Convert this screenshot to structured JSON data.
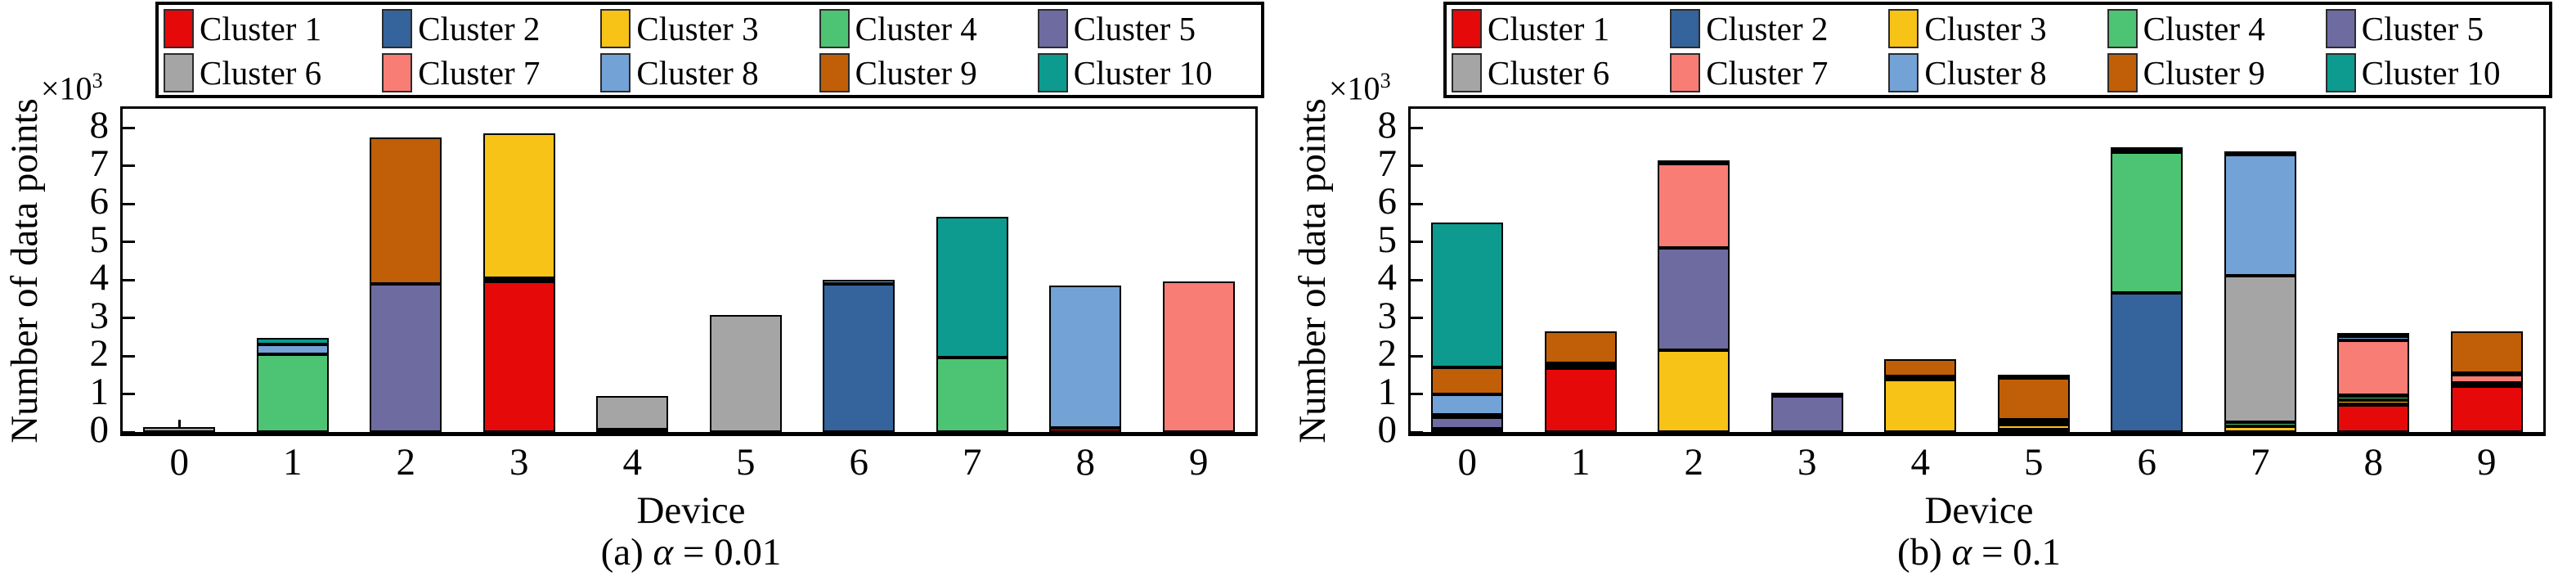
{
  "figure": {
    "ylabel": "Number of data points",
    "xlabel": "Device",
    "y_multiplier_base": "×10",
    "y_multiplier_exp": "3",
    "legend_labels": [
      "Cluster 1",
      "Cluster 2",
      "Cluster 3",
      "Cluster 4",
      "Cluster 5",
      "Cluster 6",
      "Cluster 7",
      "Cluster 8",
      "Cluster 9",
      "Cluster 10"
    ],
    "colors": {
      "Cluster 1": "#e60909",
      "Cluster 2": "#35639b",
      "Cluster 3": "#f7c316",
      "Cluster 4": "#4dc473",
      "Cluster 5": "#6e6ba1",
      "Cluster 6": "#a5a5a5",
      "Cluster 7": "#f87d75",
      "Cluster 8": "#73a2d6",
      "Cluster 9": "#c05f08",
      "Cluster 10": "#0d9b90"
    }
  },
  "chart_data": [
    {
      "type": "bar",
      "stacked": true,
      "title": "(a) α = 0.01",
      "caption_parts": {
        "prefix": "(a) ",
        "alpha": "α",
        "suffix": " = 0.01"
      },
      "xlabel": "Device",
      "ylabel": "Number of data points",
      "y_unit_multiplier": "×10³",
      "categories": [
        "0",
        "1",
        "2",
        "3",
        "4",
        "5",
        "6",
        "7",
        "8",
        "9"
      ],
      "ylim": [
        0,
        8.5
      ],
      "yticks": [
        0,
        1,
        2,
        3,
        4,
        5,
        6,
        7,
        8
      ],
      "grid": false,
      "legend_position": "top",
      "values_unit": "thousands of data points",
      "series": [
        {
          "name": "Cluster 1",
          "values": [
            0,
            0,
            0,
            3.95,
            0,
            0,
            0,
            0,
            0.1,
            0
          ]
        },
        {
          "name": "Cluster 2",
          "values": [
            0,
            0,
            0,
            0.1,
            0,
            0,
            3.9,
            0,
            0,
            0
          ]
        },
        {
          "name": "Cluster 3",
          "values": [
            0,
            0,
            0,
            3.8,
            0.06,
            0,
            0,
            0,
            0,
            0
          ]
        },
        {
          "name": "Cluster 4",
          "values": [
            0,
            2.05,
            0,
            0,
            0,
            0,
            0,
            1.95,
            0,
            0
          ]
        },
        {
          "name": "Cluster 5",
          "values": [
            0,
            0,
            3.9,
            0,
            0,
            0,
            0,
            0,
            0,
            0
          ]
        },
        {
          "name": "Cluster 6",
          "values": [
            0.13,
            0,
            0,
            0,
            0.89,
            3.08,
            0,
            0,
            0,
            0
          ]
        },
        {
          "name": "Cluster 7",
          "values": [
            0,
            0,
            0,
            0,
            0,
            0,
            0,
            0,
            0,
            3.95
          ]
        },
        {
          "name": "Cluster 8",
          "values": [
            0,
            0.25,
            0,
            0,
            0,
            0,
            0.1,
            0,
            3.75,
            0
          ]
        },
        {
          "name": "Cluster 9",
          "values": [
            0,
            0,
            3.85,
            0,
            0,
            0,
            0,
            0,
            0,
            0
          ]
        },
        {
          "name": "Cluster 10",
          "values": [
            0,
            0.18,
            0,
            0,
            0,
            0,
            0,
            3.7,
            0,
            0
          ]
        }
      ]
    },
    {
      "type": "bar",
      "stacked": true,
      "title": "(b) α = 0.1",
      "caption_parts": {
        "prefix": "(b) ",
        "alpha": "α",
        "suffix": " = 0.1"
      },
      "xlabel": "Device",
      "ylabel": "Number of data points",
      "y_unit_multiplier": "×10³",
      "categories": [
        "0",
        "1",
        "2",
        "3",
        "4",
        "5",
        "6",
        "7",
        "8",
        "9"
      ],
      "ylim": [
        0,
        8.5
      ],
      "yticks": [
        0,
        1,
        2,
        3,
        4,
        5,
        6,
        7,
        8
      ],
      "grid": false,
      "legend_position": "top",
      "values_unit": "thousands of data points",
      "series": [
        {
          "name": "Cluster 1",
          "values": [
            0,
            1.67,
            0,
            0,
            0,
            0,
            0,
            0,
            0.7,
            1.2
          ]
        },
        {
          "name": "Cluster 2",
          "values": [
            0.04,
            0.05,
            0,
            0,
            0,
            0.07,
            3.65,
            0,
            0.04,
            0.1
          ]
        },
        {
          "name": "Cluster 3",
          "values": [
            0,
            0.04,
            2.15,
            0,
            1.38,
            0.12,
            0,
            0.15,
            0.1,
            0
          ]
        },
        {
          "name": "Cluster 4",
          "values": [
            0.04,
            0,
            0,
            0,
            0,
            0.08,
            3.7,
            0.1,
            0.1,
            0
          ]
        },
        {
          "name": "Cluster 5",
          "values": [
            0.3,
            0.04,
            2.7,
            0.95,
            0.05,
            0.05,
            0,
            0,
            0.03,
            0
          ]
        },
        {
          "name": "Cluster 6",
          "values": [
            0,
            0,
            0,
            0,
            0,
            0,
            0,
            3.85,
            0,
            0
          ]
        },
        {
          "name": "Cluster 7",
          "values": [
            0.07,
            0,
            2.2,
            0,
            0,
            0,
            0,
            0,
            1.45,
            0.2
          ]
        },
        {
          "name": "Cluster 8",
          "values": [
            0.55,
            0,
            0.08,
            0,
            0.04,
            0,
            0.05,
            3.2,
            0.1,
            0.05
          ]
        },
        {
          "name": "Cluster 9",
          "values": [
            0.7,
            0.85,
            0,
            0.08,
            0.45,
            1.1,
            0,
            0.04,
            0.05,
            1.1
          ]
        },
        {
          "name": "Cluster 10",
          "values": [
            3.8,
            0,
            0,
            0,
            0,
            0.06,
            0.05,
            0,
            0,
            0
          ]
        }
      ]
    }
  ]
}
